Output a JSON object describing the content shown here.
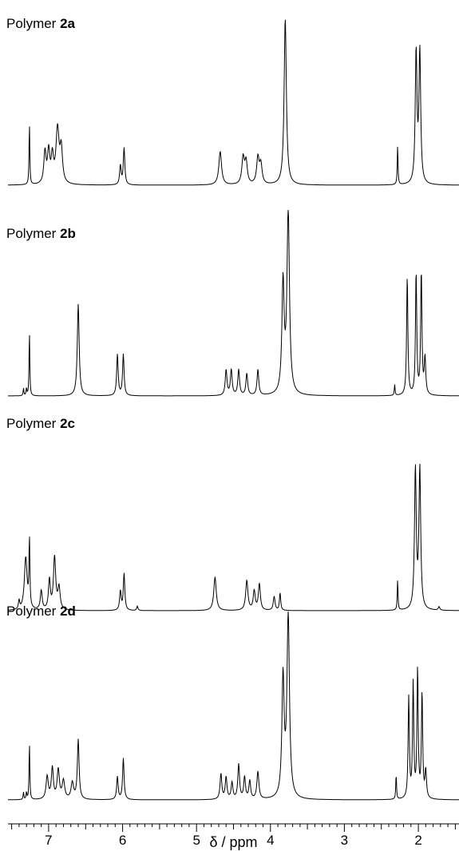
{
  "chart_data": {
    "type": "line",
    "title": "",
    "xlabel": "δ / ppm",
    "ylabel": "",
    "xlim": [
      7.55,
      1.45
    ],
    "x_reversed": true,
    "x_ticks": [
      7,
      6,
      5,
      4,
      3,
      2
    ],
    "x_tick_labels": [
      "7",
      "6",
      "5",
      "4",
      "3",
      "2"
    ],
    "line_color": "#000000",
    "panels": [
      {
        "label_prefix": "Polymer",
        "label_compound": "2a",
        "peaks": [
          {
            "ppm": 7.26,
            "h": 0.7,
            "w": 0.006
          },
          {
            "ppm": 7.05,
            "h": 0.36,
            "w": 0.018
          },
          {
            "ppm": 7.0,
            "h": 0.36,
            "w": 0.018
          },
          {
            "ppm": 6.95,
            "h": 0.3,
            "w": 0.018
          },
          {
            "ppm": 6.88,
            "h": 0.62,
            "w": 0.025
          },
          {
            "ppm": 6.83,
            "h": 0.38,
            "w": 0.02
          },
          {
            "ppm": 6.03,
            "h": 0.22,
            "w": 0.012
          },
          {
            "ppm": 5.98,
            "h": 0.42,
            "w": 0.012
          },
          {
            "ppm": 4.68,
            "h": 0.38,
            "w": 0.022
          },
          {
            "ppm": 4.37,
            "h": 0.3,
            "w": 0.02
          },
          {
            "ppm": 4.33,
            "h": 0.25,
            "w": 0.02
          },
          {
            "ppm": 4.17,
            "h": 0.3,
            "w": 0.02
          },
          {
            "ppm": 4.13,
            "h": 0.22,
            "w": 0.02
          },
          {
            "ppm": 3.8,
            "h": 1.9,
            "w": 0.018
          },
          {
            "ppm": 2.28,
            "h": 0.45,
            "w": 0.006
          },
          {
            "ppm": 2.03,
            "h": 1.5,
            "w": 0.014
          },
          {
            "ppm": 1.98,
            "h": 1.5,
            "w": 0.014
          }
        ]
      },
      {
        "label_prefix": "Polymer",
        "label_compound": "2b",
        "peaks": [
          {
            "ppm": 7.34,
            "h": 0.08,
            "w": 0.006
          },
          {
            "ppm": 7.3,
            "h": 0.08,
            "w": 0.006
          },
          {
            "ppm": 7.26,
            "h": 0.7,
            "w": 0.006
          },
          {
            "ppm": 6.6,
            "h": 1.0,
            "w": 0.015
          },
          {
            "ppm": 6.07,
            "h": 0.45,
            "w": 0.012
          },
          {
            "ppm": 5.99,
            "h": 0.45,
            "w": 0.012
          },
          {
            "ppm": 4.6,
            "h": 0.28,
            "w": 0.014
          },
          {
            "ppm": 4.53,
            "h": 0.28,
            "w": 0.014
          },
          {
            "ppm": 4.43,
            "h": 0.28,
            "w": 0.014
          },
          {
            "ppm": 4.32,
            "h": 0.24,
            "w": 0.014
          },
          {
            "ppm": 4.17,
            "h": 0.28,
            "w": 0.014
          },
          {
            "ppm": 3.83,
            "h": 1.2,
            "w": 0.018
          },
          {
            "ppm": 3.76,
            "h": 2.0,
            "w": 0.02
          },
          {
            "ppm": 2.32,
            "h": 0.12,
            "w": 0.006
          },
          {
            "ppm": 2.15,
            "h": 1.3,
            "w": 0.01
          },
          {
            "ppm": 2.03,
            "h": 1.35,
            "w": 0.01
          },
          {
            "ppm": 1.96,
            "h": 1.35,
            "w": 0.01
          },
          {
            "ppm": 1.91,
            "h": 0.4,
            "w": 0.012
          }
        ]
      },
      {
        "label_prefix": "Polymer",
        "label_compound": "2c",
        "peaks": [
          {
            "ppm": 7.4,
            "h": 0.1,
            "w": 0.01
          },
          {
            "ppm": 7.31,
            "h": 0.6,
            "w": 0.022
          },
          {
            "ppm": 7.26,
            "h": 0.78,
            "w": 0.007
          },
          {
            "ppm": 7.1,
            "h": 0.22,
            "w": 0.015
          },
          {
            "ppm": 6.99,
            "h": 0.34,
            "w": 0.015
          },
          {
            "ppm": 6.92,
            "h": 0.6,
            "w": 0.018
          },
          {
            "ppm": 6.86,
            "h": 0.25,
            "w": 0.018
          },
          {
            "ppm": 6.03,
            "h": 0.22,
            "w": 0.012
          },
          {
            "ppm": 5.98,
            "h": 0.42,
            "w": 0.012
          },
          {
            "ppm": 5.8,
            "h": 0.05,
            "w": 0.01
          },
          {
            "ppm": 4.75,
            "h": 0.38,
            "w": 0.02
          },
          {
            "ppm": 4.32,
            "h": 0.34,
            "w": 0.018
          },
          {
            "ppm": 4.22,
            "h": 0.22,
            "w": 0.016
          },
          {
            "ppm": 4.15,
            "h": 0.3,
            "w": 0.016
          },
          {
            "ppm": 3.95,
            "h": 0.16,
            "w": 0.014
          },
          {
            "ppm": 3.87,
            "h": 0.2,
            "w": 0.01
          },
          {
            "ppm": 2.28,
            "h": 0.35,
            "w": 0.006
          },
          {
            "ppm": 2.04,
            "h": 1.6,
            "w": 0.014
          },
          {
            "ppm": 1.98,
            "h": 1.6,
            "w": 0.014
          },
          {
            "ppm": 1.72,
            "h": 0.04,
            "w": 0.012
          }
        ]
      },
      {
        "label_prefix": "Polymer",
        "label_compound": "2d",
        "peaks": [
          {
            "ppm": 7.34,
            "h": 0.08,
            "w": 0.006
          },
          {
            "ppm": 7.3,
            "h": 0.08,
            "w": 0.006
          },
          {
            "ppm": 7.26,
            "h": 0.62,
            "w": 0.006
          },
          {
            "ppm": 7.02,
            "h": 0.25,
            "w": 0.018
          },
          {
            "ppm": 6.95,
            "h": 0.34,
            "w": 0.016
          },
          {
            "ppm": 6.87,
            "h": 0.32,
            "w": 0.018
          },
          {
            "ppm": 6.8,
            "h": 0.2,
            "w": 0.02
          },
          {
            "ppm": 6.6,
            "h": 0.65,
            "w": 0.014
          },
          {
            "ppm": 6.68,
            "h": 0.18,
            "w": 0.02
          },
          {
            "ppm": 6.07,
            "h": 0.25,
            "w": 0.012
          },
          {
            "ppm": 5.99,
            "h": 0.45,
            "w": 0.012
          },
          {
            "ppm": 4.67,
            "h": 0.28,
            "w": 0.014
          },
          {
            "ppm": 4.6,
            "h": 0.24,
            "w": 0.014
          },
          {
            "ppm": 4.52,
            "h": 0.18,
            "w": 0.014
          },
          {
            "ppm": 4.43,
            "h": 0.38,
            "w": 0.014
          },
          {
            "ppm": 4.35,
            "h": 0.24,
            "w": 0.014
          },
          {
            "ppm": 4.28,
            "h": 0.2,
            "w": 0.014
          },
          {
            "ppm": 4.17,
            "h": 0.3,
            "w": 0.016
          },
          {
            "ppm": 3.83,
            "h": 1.3,
            "w": 0.018
          },
          {
            "ppm": 3.76,
            "h": 2.0,
            "w": 0.02
          },
          {
            "ppm": 2.3,
            "h": 0.28,
            "w": 0.006
          },
          {
            "ppm": 2.13,
            "h": 1.1,
            "w": 0.01
          },
          {
            "ppm": 2.07,
            "h": 1.25,
            "w": 0.01
          },
          {
            "ppm": 2.01,
            "h": 1.4,
            "w": 0.01
          },
          {
            "ppm": 1.95,
            "h": 1.15,
            "w": 0.01
          },
          {
            "ppm": 1.9,
            "h": 0.3,
            "w": 0.012
          }
        ]
      }
    ]
  }
}
